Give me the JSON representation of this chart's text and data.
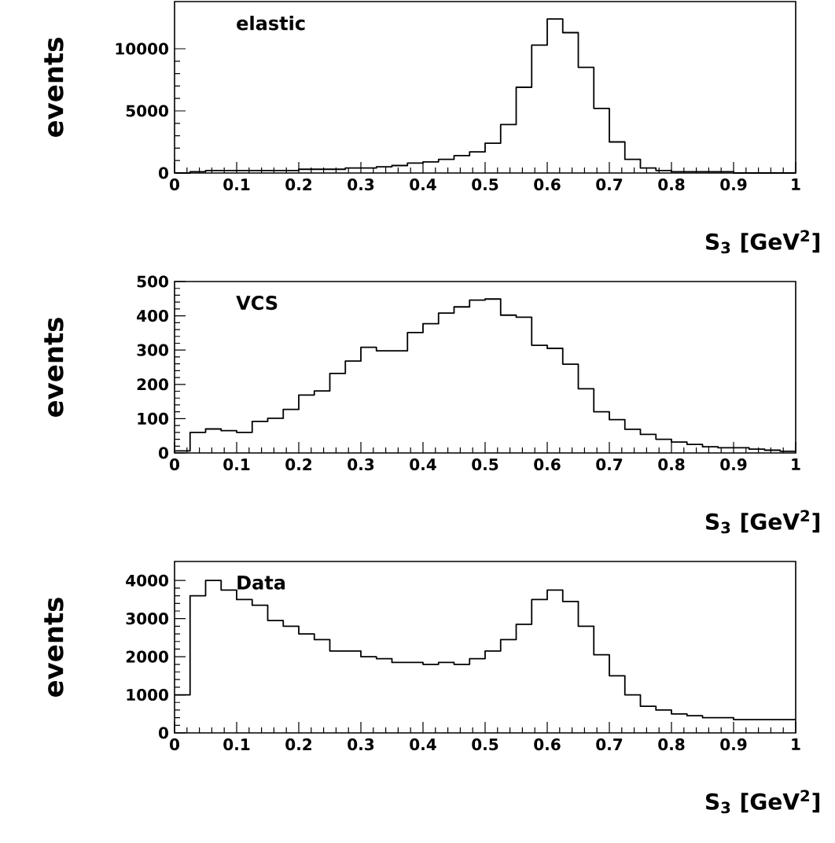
{
  "chart_data": [
    {
      "type": "histogram",
      "title": "elastic",
      "xlabel": "S$_{3}$ [GeV$^{2}$]",
      "ylabel": "events",
      "bins": [
        0,
        0.025,
        0.05,
        0.075,
        0.1,
        0.125,
        0.15,
        0.175,
        0.2,
        0.225,
        0.25,
        0.275,
        0.3,
        0.325,
        0.35,
        0.375,
        0.4,
        0.425,
        0.45,
        0.475,
        0.5,
        0.525,
        0.55,
        0.575,
        0.6,
        0.625,
        0.65,
        0.675,
        0.7,
        0.725,
        0.75,
        0.775,
        0.8,
        0.825,
        0.85,
        0.875,
        0.9,
        0.925,
        0.95,
        0.975,
        1
      ],
      "values": [
        0,
        100,
        200,
        200,
        200,
        200,
        200,
        200,
        300,
        300,
        300,
        400,
        400,
        500,
        600,
        800,
        900,
        1100,
        1400,
        1700,
        2400,
        3900,
        6900,
        10300,
        12400,
        11300,
        8500,
        5200,
        2500,
        1100,
        400,
        200,
        100,
        100,
        100,
        100,
        0,
        0,
        0,
        0
      ],
      "color": "#000000",
      "xlim": [
        0,
        1
      ],
      "ylim": [
        0,
        13800
      ],
      "xticks": [
        0,
        0.1,
        0.2,
        0.3,
        0.4,
        0.5,
        0.6,
        0.7,
        0.8,
        0.9,
        1
      ],
      "yticks": [
        0,
        5000,
        10000
      ]
    },
    {
      "type": "histogram",
      "title": "VCS",
      "xlabel": "S$_{3}$ [GeV$^{2}$]",
      "ylabel": "events",
      "bins": [
        0,
        0.025,
        0.05,
        0.075,
        0.1,
        0.125,
        0.15,
        0.175,
        0.2,
        0.225,
        0.25,
        0.275,
        0.3,
        0.325,
        0.35,
        0.375,
        0.4,
        0.425,
        0.45,
        0.475,
        0.5,
        0.525,
        0.55,
        0.575,
        0.6,
        0.625,
        0.65,
        0.675,
        0.7,
        0.725,
        0.75,
        0.775,
        0.8,
        0.825,
        0.85,
        0.875,
        0.9,
        0.925,
        0.95,
        0.975,
        1
      ],
      "values": [
        6,
        60,
        70,
        65,
        60,
        92,
        101,
        127,
        169,
        181,
        232,
        268,
        308,
        298,
        298,
        351,
        377,
        408,
        426,
        446,
        449,
        402,
        396,
        314,
        305,
        259,
        187,
        120,
        97,
        69,
        54,
        40,
        32,
        25,
        18,
        15,
        15,
        11,
        8,
        5
      ],
      "color": "#000000",
      "xlim": [
        0,
        1
      ],
      "ylim": [
        0,
        500
      ],
      "xticks": [
        0,
        0.1,
        0.2,
        0.3,
        0.4,
        0.5,
        0.6,
        0.7,
        0.8,
        0.9,
        1
      ],
      "yticks": [
        0,
        100,
        200,
        300,
        400,
        500
      ]
    },
    {
      "type": "histogram",
      "title": "Data",
      "xlabel": "S$_{3}$ [GeV$^{2}$]",
      "ylabel": "events",
      "bins": [
        0,
        0.025,
        0.05,
        0.075,
        0.1,
        0.125,
        0.15,
        0.175,
        0.2,
        0.225,
        0.25,
        0.275,
        0.3,
        0.325,
        0.35,
        0.375,
        0.4,
        0.425,
        0.45,
        0.475,
        0.5,
        0.525,
        0.55,
        0.575,
        0.6,
        0.625,
        0.65,
        0.675,
        0.7,
        0.725,
        0.75,
        0.775,
        0.8,
        0.825,
        0.85,
        0.875,
        0.9,
        0.925,
        0.95,
        0.975,
        1
      ],
      "values": [
        1000,
        3600,
        4000,
        3750,
        3500,
        3350,
        2950,
        2800,
        2600,
        2450,
        2150,
        2150,
        2000,
        1950,
        1850,
        1850,
        1800,
        1850,
        1800,
        1950,
        2150,
        2450,
        2850,
        3500,
        3750,
        3450,
        2800,
        2050,
        1500,
        1000,
        700,
        600,
        500,
        450,
        400,
        400,
        350,
        350,
        350,
        350
      ],
      "color": "#000000",
      "xlim": [
        0,
        1
      ],
      "ylim": [
        0,
        4500
      ],
      "xticks": [
        0,
        0.1,
        0.2,
        0.3,
        0.4,
        0.5,
        0.6,
        0.7,
        0.8,
        0.9,
        1
      ],
      "yticks": [
        0,
        1000,
        2000,
        3000,
        4000
      ]
    }
  ]
}
